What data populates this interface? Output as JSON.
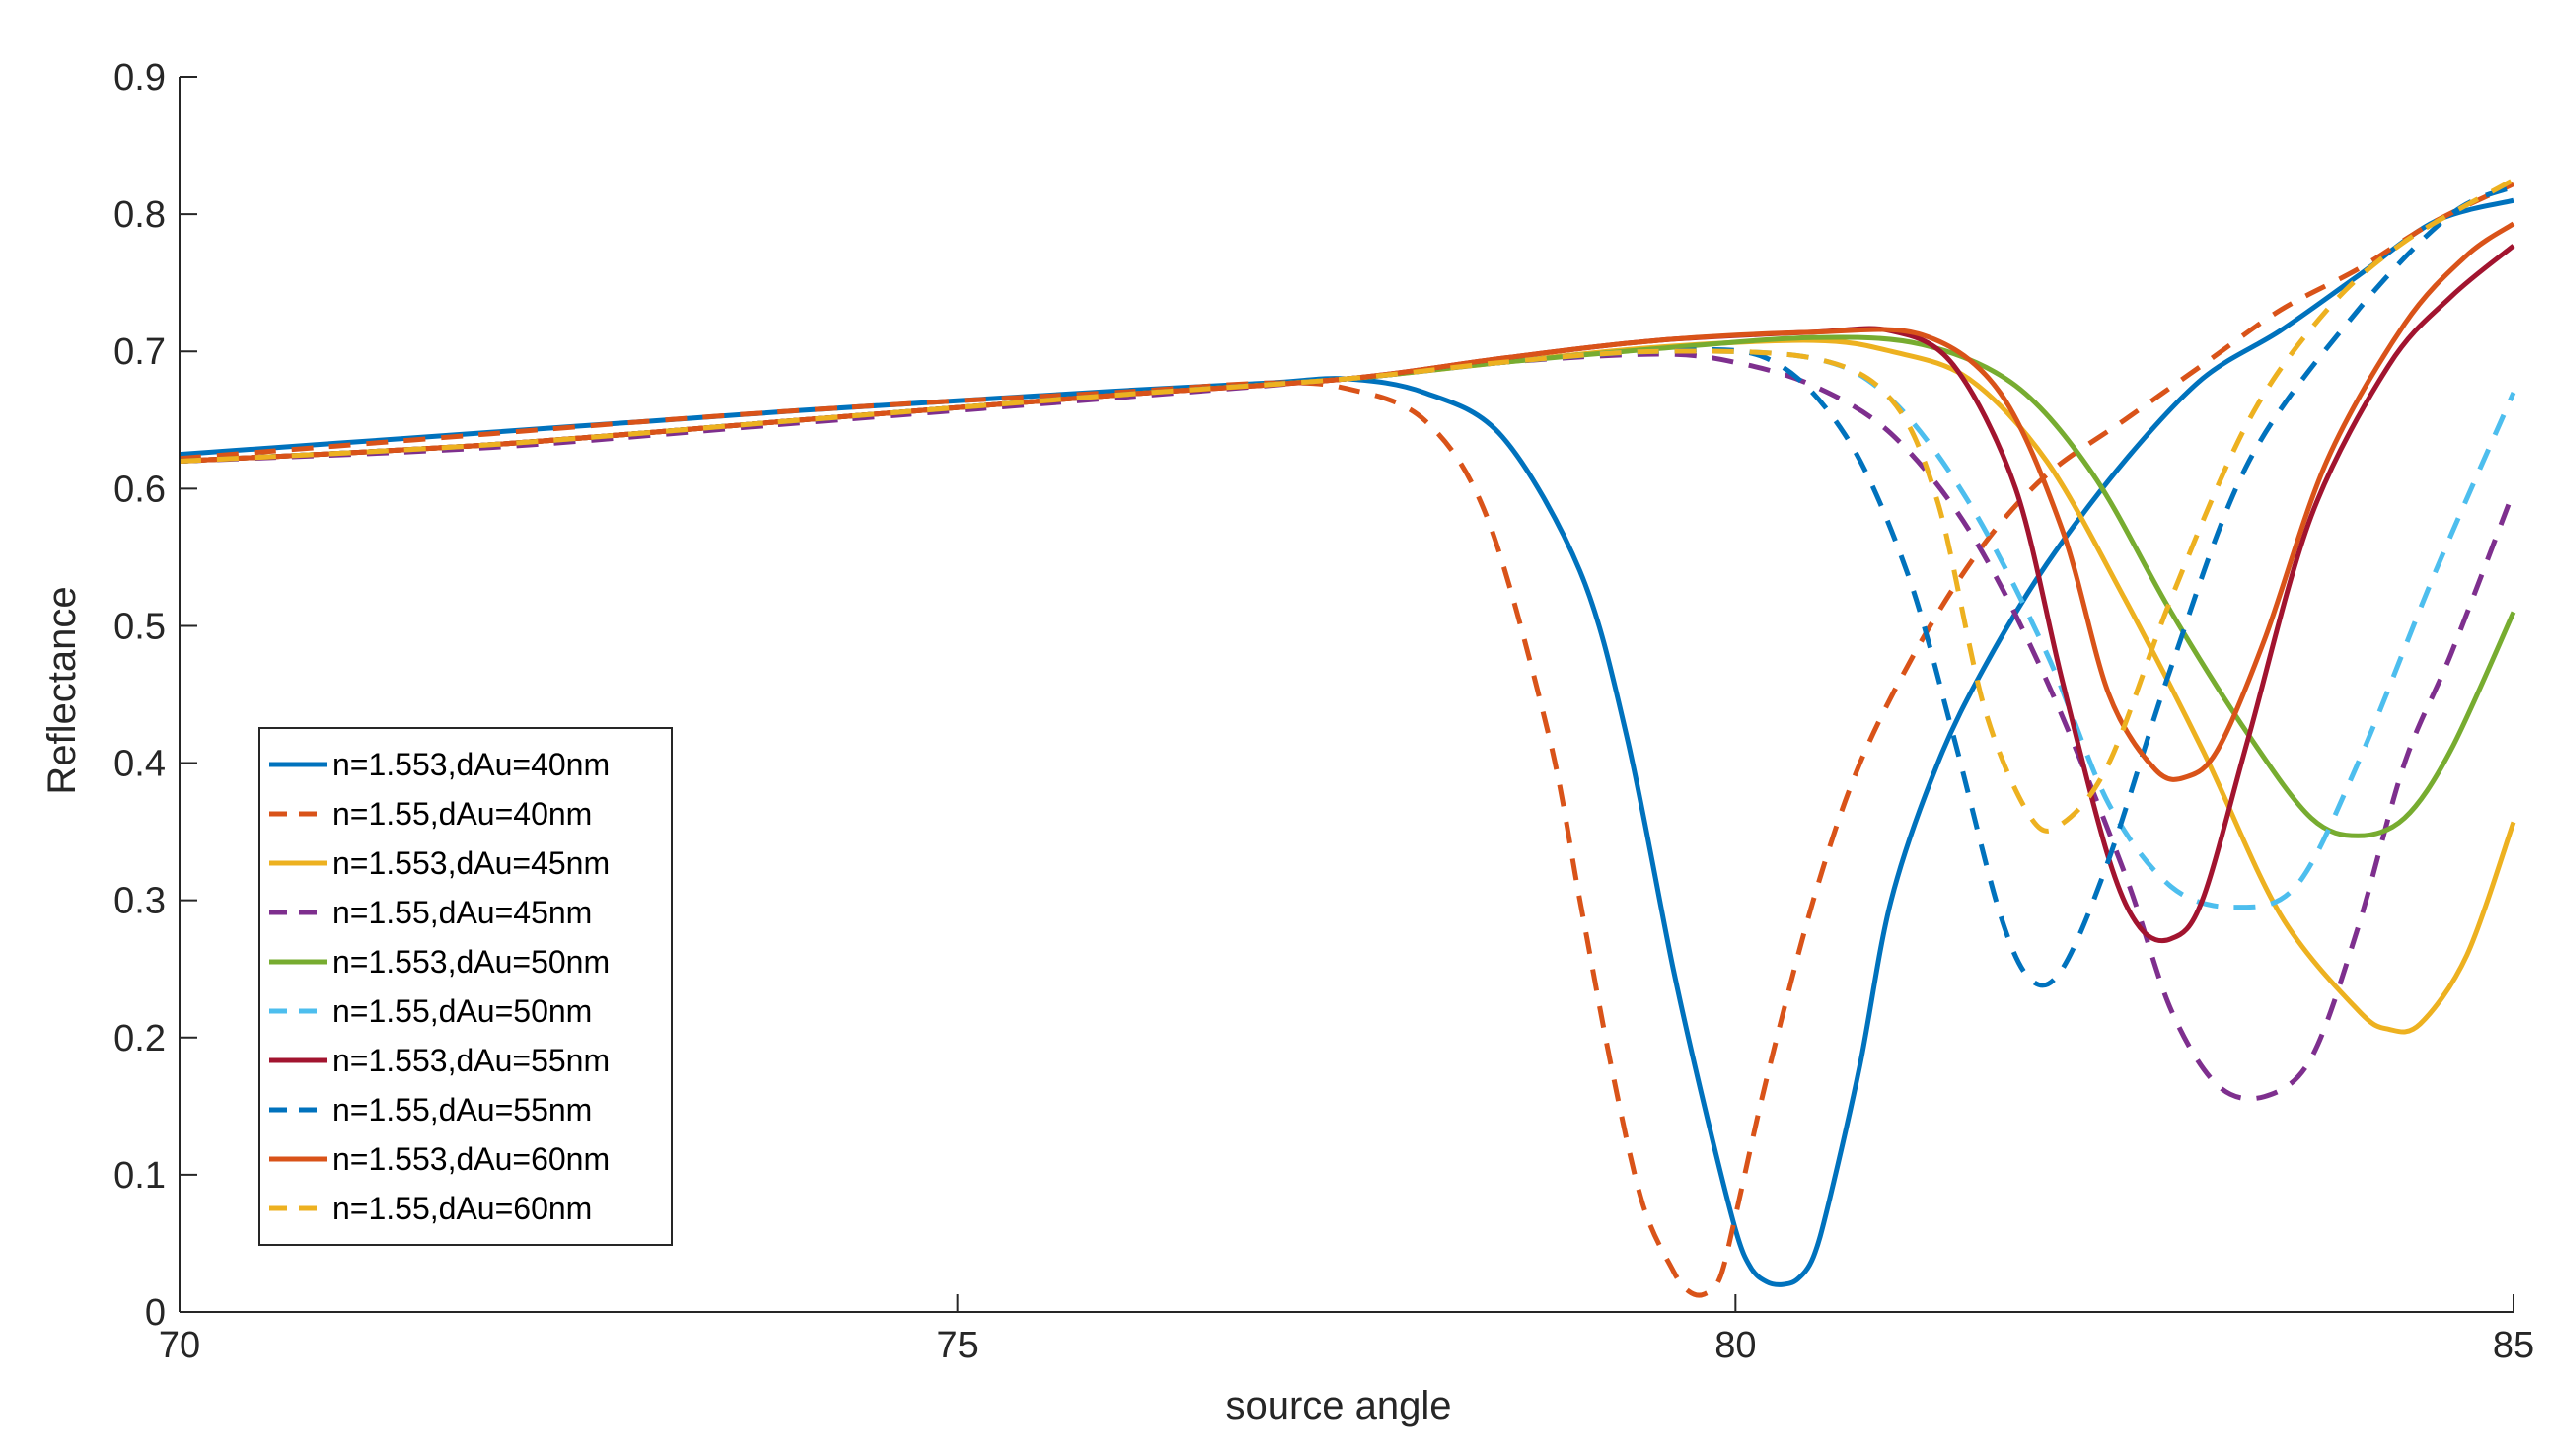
{
  "chart_data": {
    "type": "line",
    "title": "",
    "xlabel": "source angle",
    "ylabel": "Reflectance",
    "xlim": [
      70,
      85
    ],
    "ylim": [
      0,
      0.9
    ],
    "xticks": [
      70,
      75,
      80,
      85
    ],
    "xtick_labels": [
      "70",
      "75",
      "80",
      "85"
    ],
    "yticks": [
      0,
      0.1,
      0.2,
      0.3,
      0.4,
      0.5,
      0.6,
      0.7,
      0.8,
      0.9
    ],
    "ytick_labels": [
      "0",
      "0.1",
      "0.2",
      "0.3",
      "0.4",
      "0.5",
      "0.6",
      "0.7",
      "0.8",
      "0.9"
    ],
    "grid": false,
    "legend_position": "lower-left",
    "series": [
      {
        "name": "n=1.553,dAu=40nm",
        "color": "#0072BD",
        "dash": "solid",
        "x": [
          70,
          71,
          72,
          73,
          74,
          75,
          76,
          77,
          77.5,
          78,
          78.5,
          79,
          79.3,
          79.6,
          79.8,
          80,
          80.1,
          80.2,
          80.3,
          80.4,
          80.5,
          80.6,
          80.8,
          81,
          81.3,
          81.6,
          82,
          82.5,
          83,
          83.5,
          84,
          84.5,
          85
        ],
        "y": [
          0.625,
          0.633,
          0.641,
          0.649,
          0.657,
          0.664,
          0.671,
          0.677,
          0.68,
          0.67,
          0.638,
          0.54,
          0.42,
          0.25,
          0.15,
          0.06,
          0.032,
          0.022,
          0.02,
          0.024,
          0.04,
          0.08,
          0.18,
          0.3,
          0.4,
          0.47,
          0.545,
          0.62,
          0.68,
          0.715,
          0.755,
          0.795,
          0.81
        ]
      },
      {
        "name": "n=1.55,dAu=40nm",
        "color": "#D95319",
        "dash": "dashed",
        "x": [
          70,
          71,
          72,
          73,
          74,
          75,
          76,
          77,
          77.5,
          78,
          78.4,
          78.8,
          79,
          79.2,
          79.4,
          79.6,
          79.7,
          79.8,
          79.9,
          80,
          80.2,
          80.5,
          80.8,
          81.2,
          81.6,
          82,
          82.5,
          83,
          83.5,
          84,
          84.5,
          85
        ],
        "y": [
          0.622,
          0.631,
          0.64,
          0.649,
          0.657,
          0.664,
          0.67,
          0.677,
          0.673,
          0.65,
          0.58,
          0.42,
          0.3,
          0.18,
          0.08,
          0.03,
          0.015,
          0.013,
          0.025,
          0.07,
          0.17,
          0.3,
          0.4,
          0.49,
          0.56,
          0.61,
          0.65,
          0.69,
          0.73,
          0.76,
          0.795,
          0.822
        ]
      },
      {
        "name": "n=1.553,dAu=45nm",
        "color": "#EDB120",
        "dash": "solid",
        "x": [
          70,
          72,
          74,
          76,
          77.5,
          78.5,
          79.5,
          80.5,
          81,
          81.5,
          82,
          82.5,
          83,
          83.5,
          84,
          84.2,
          84.4,
          84.7,
          85
        ],
        "y": [
          0.62,
          0.632,
          0.65,
          0.668,
          0.68,
          0.692,
          0.703,
          0.708,
          0.7,
          0.68,
          0.62,
          0.52,
          0.41,
          0.29,
          0.22,
          0.206,
          0.21,
          0.26,
          0.357
        ]
      },
      {
        "name": "n=1.55,dAu=45nm",
        "color": "#7E2F8E",
        "dash": "dashed",
        "x": [
          70,
          72,
          74,
          76,
          77.5,
          78.5,
          79.5,
          80,
          80.5,
          81,
          81.5,
          82,
          82.5,
          82.8,
          83.1,
          83.4,
          83.7,
          84,
          84.3,
          84.6,
          85
        ],
        "y": [
          0.62,
          0.63,
          0.648,
          0.666,
          0.68,
          0.692,
          0.698,
          0.692,
          0.675,
          0.64,
          0.57,
          0.46,
          0.32,
          0.22,
          0.165,
          0.157,
          0.185,
          0.28,
          0.4,
          0.48,
          0.598
        ]
      },
      {
        "name": "n=1.553,dAu=50nm",
        "color": "#77AC30",
        "dash": "solid",
        "x": [
          70,
          72,
          74,
          76,
          77.5,
          78.5,
          79.5,
          80.5,
          81.2,
          81.8,
          82.3,
          82.8,
          83.3,
          83.7,
          84,
          84.3,
          84.6,
          85
        ],
        "y": [
          0.62,
          0.632,
          0.65,
          0.668,
          0.68,
          0.692,
          0.702,
          0.71,
          0.705,
          0.675,
          0.61,
          0.51,
          0.42,
          0.36,
          0.347,
          0.36,
          0.41,
          0.51
        ]
      },
      {
        "name": "n=1.55,dAu=50nm",
        "color": "#4DBEEE",
        "dash": "dashed",
        "x": [
          70,
          72,
          74,
          76,
          77.5,
          78.5,
          79.5,
          80.5,
          81,
          81.5,
          82,
          82.4,
          82.8,
          83.2,
          83.6,
          84,
          84.5,
          85
        ],
        "y": [
          0.62,
          0.632,
          0.65,
          0.668,
          0.68,
          0.692,
          0.7,
          0.695,
          0.665,
          0.59,
          0.48,
          0.37,
          0.31,
          0.295,
          0.31,
          0.4,
          0.54,
          0.67
        ]
      },
      {
        "name": "n=1.553,dAu=55nm",
        "color": "#A2142F",
        "dash": "solid",
        "x": [
          70,
          72,
          74,
          76,
          77.5,
          78.5,
          79.5,
          80.5,
          81,
          81.4,
          81.8,
          82.1,
          82.4,
          82.6,
          82.8,
          83,
          83.3,
          83.7,
          84.2,
          84.6,
          85
        ],
        "y": [
          0.62,
          0.632,
          0.65,
          0.668,
          0.68,
          0.695,
          0.708,
          0.714,
          0.715,
          0.69,
          0.6,
          0.46,
          0.33,
          0.28,
          0.272,
          0.3,
          0.42,
          0.58,
          0.69,
          0.74,
          0.777
        ]
      },
      {
        "name": "n=1.55,dAu=55nm",
        "color": "#0072BD",
        "dash": "dashed",
        "x": [
          70,
          72,
          74,
          76,
          77.5,
          78.5,
          79.5,
          80.2,
          80.7,
          81.1,
          81.4,
          81.7,
          81.9,
          82.1,
          82.4,
          82.8,
          83.3,
          84,
          84.6,
          85
        ],
        "y": [
          0.62,
          0.632,
          0.65,
          0.668,
          0.68,
          0.692,
          0.7,
          0.695,
          0.64,
          0.54,
          0.42,
          0.29,
          0.242,
          0.25,
          0.33,
          0.47,
          0.62,
          0.73,
          0.8,
          0.82
        ]
      },
      {
        "name": "n=1.553,dAu=60nm",
        "color": "#D95319",
        "dash": "solid",
        "x": [
          70,
          72,
          74,
          76,
          77.5,
          78.5,
          79.5,
          80.5,
          81.2,
          81.7,
          82.1,
          82.4,
          82.7,
          82.9,
          83.1,
          83.4,
          83.8,
          84.3,
          84.7,
          85
        ],
        "y": [
          0.62,
          0.632,
          0.65,
          0.668,
          0.68,
          0.695,
          0.708,
          0.714,
          0.712,
          0.67,
          0.57,
          0.45,
          0.395,
          0.39,
          0.41,
          0.49,
          0.62,
          0.72,
          0.77,
          0.793
        ]
      },
      {
        "name": "n=1.55,dAu=60nm",
        "color": "#EDB120",
        "dash": "dashed",
        "x": [
          70,
          72,
          74,
          76,
          77.5,
          78.5,
          79.5,
          80.5,
          81,
          81.3,
          81.6,
          81.9,
          82.1,
          82.4,
          82.8,
          83.3,
          83.8,
          84.3,
          85
        ],
        "y": [
          0.62,
          0.632,
          0.65,
          0.668,
          0.68,
          0.692,
          0.7,
          0.695,
          0.665,
          0.59,
          0.44,
          0.36,
          0.356,
          0.4,
          0.52,
          0.65,
          0.73,
          0.78,
          0.825
        ]
      }
    ]
  }
}
